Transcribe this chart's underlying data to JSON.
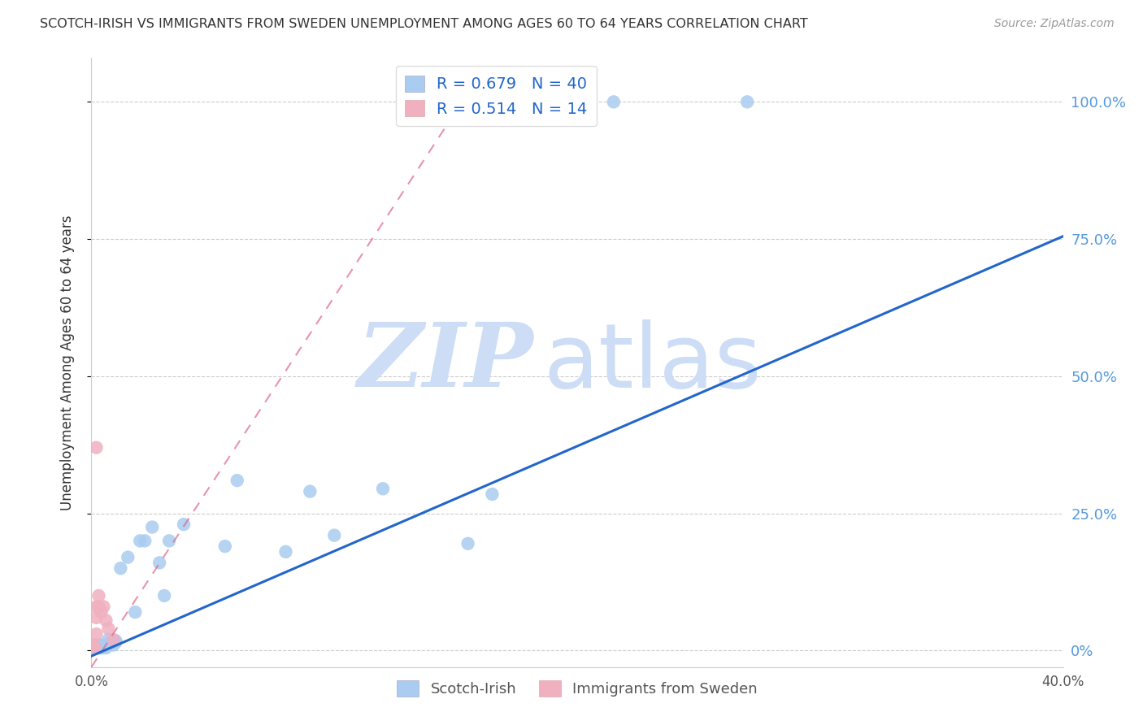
{
  "title": "SCOTCH-IRISH VS IMMIGRANTS FROM SWEDEN UNEMPLOYMENT AMONG AGES 60 TO 64 YEARS CORRELATION CHART",
  "source": "Source: ZipAtlas.com",
  "ylabel": "Unemployment Among Ages 60 to 64 years",
  "legend_blue_R": "0.679",
  "legend_blue_N": "40",
  "legend_pink_R": "0.514",
  "legend_pink_N": "14",
  "ytick_values": [
    0.0,
    0.25,
    0.5,
    0.75,
    1.0
  ],
  "ytick_labels_right": [
    "0%",
    "25.0%",
    "50.0%",
    "75.0%",
    "100.0%"
  ],
  "xlim": [
    0.0,
    0.4
  ],
  "ylim": [
    -0.03,
    1.08
  ],
  "blue_scatter_x": [
    0.001,
    0.001,
    0.001,
    0.002,
    0.002,
    0.002,
    0.003,
    0.003,
    0.003,
    0.004,
    0.004,
    0.005,
    0.005,
    0.006,
    0.006,
    0.007,
    0.008,
    0.009,
    0.01,
    0.01,
    0.012,
    0.015,
    0.018,
    0.02,
    0.022,
    0.025,
    0.028,
    0.03,
    0.032,
    0.038,
    0.055,
    0.06,
    0.08,
    0.09,
    0.1,
    0.12,
    0.155,
    0.165,
    0.215,
    0.27
  ],
  "blue_scatter_y": [
    0.005,
    0.005,
    0.005,
    0.005,
    0.005,
    0.01,
    0.005,
    0.005,
    0.01,
    0.005,
    0.01,
    0.005,
    0.01,
    0.005,
    0.01,
    0.02,
    0.015,
    0.01,
    0.018,
    0.015,
    0.15,
    0.17,
    0.07,
    0.2,
    0.2,
    0.225,
    0.16,
    0.1,
    0.2,
    0.23,
    0.19,
    0.31,
    0.18,
    0.29,
    0.21,
    0.295,
    0.195,
    0.285,
    1.0,
    1.0
  ],
  "pink_scatter_x": [
    0.001,
    0.001,
    0.001,
    0.002,
    0.002,
    0.002,
    0.003,
    0.003,
    0.004,
    0.005,
    0.006,
    0.007,
    0.009,
    0.002
  ],
  "pink_scatter_y": [
    0.005,
    0.01,
    0.01,
    0.03,
    0.06,
    0.08,
    0.08,
    0.1,
    0.07,
    0.08,
    0.055,
    0.04,
    0.02,
    0.37
  ],
  "blue_line_x": [
    0.0,
    0.4
  ],
  "blue_line_y": [
    -0.01,
    0.755
  ],
  "pink_line_x": [
    0.0,
    0.16
  ],
  "pink_line_y": [
    -0.03,
    1.05
  ],
  "blue_color": "#aaccf0",
  "blue_line_color": "#2266cc",
  "pink_color": "#f0b0c0",
  "pink_line_color": "#dd6688",
  "grid_color": "#cccccc",
  "right_tick_color": "#5599dd",
  "watermark_color": "#ccddf5"
}
